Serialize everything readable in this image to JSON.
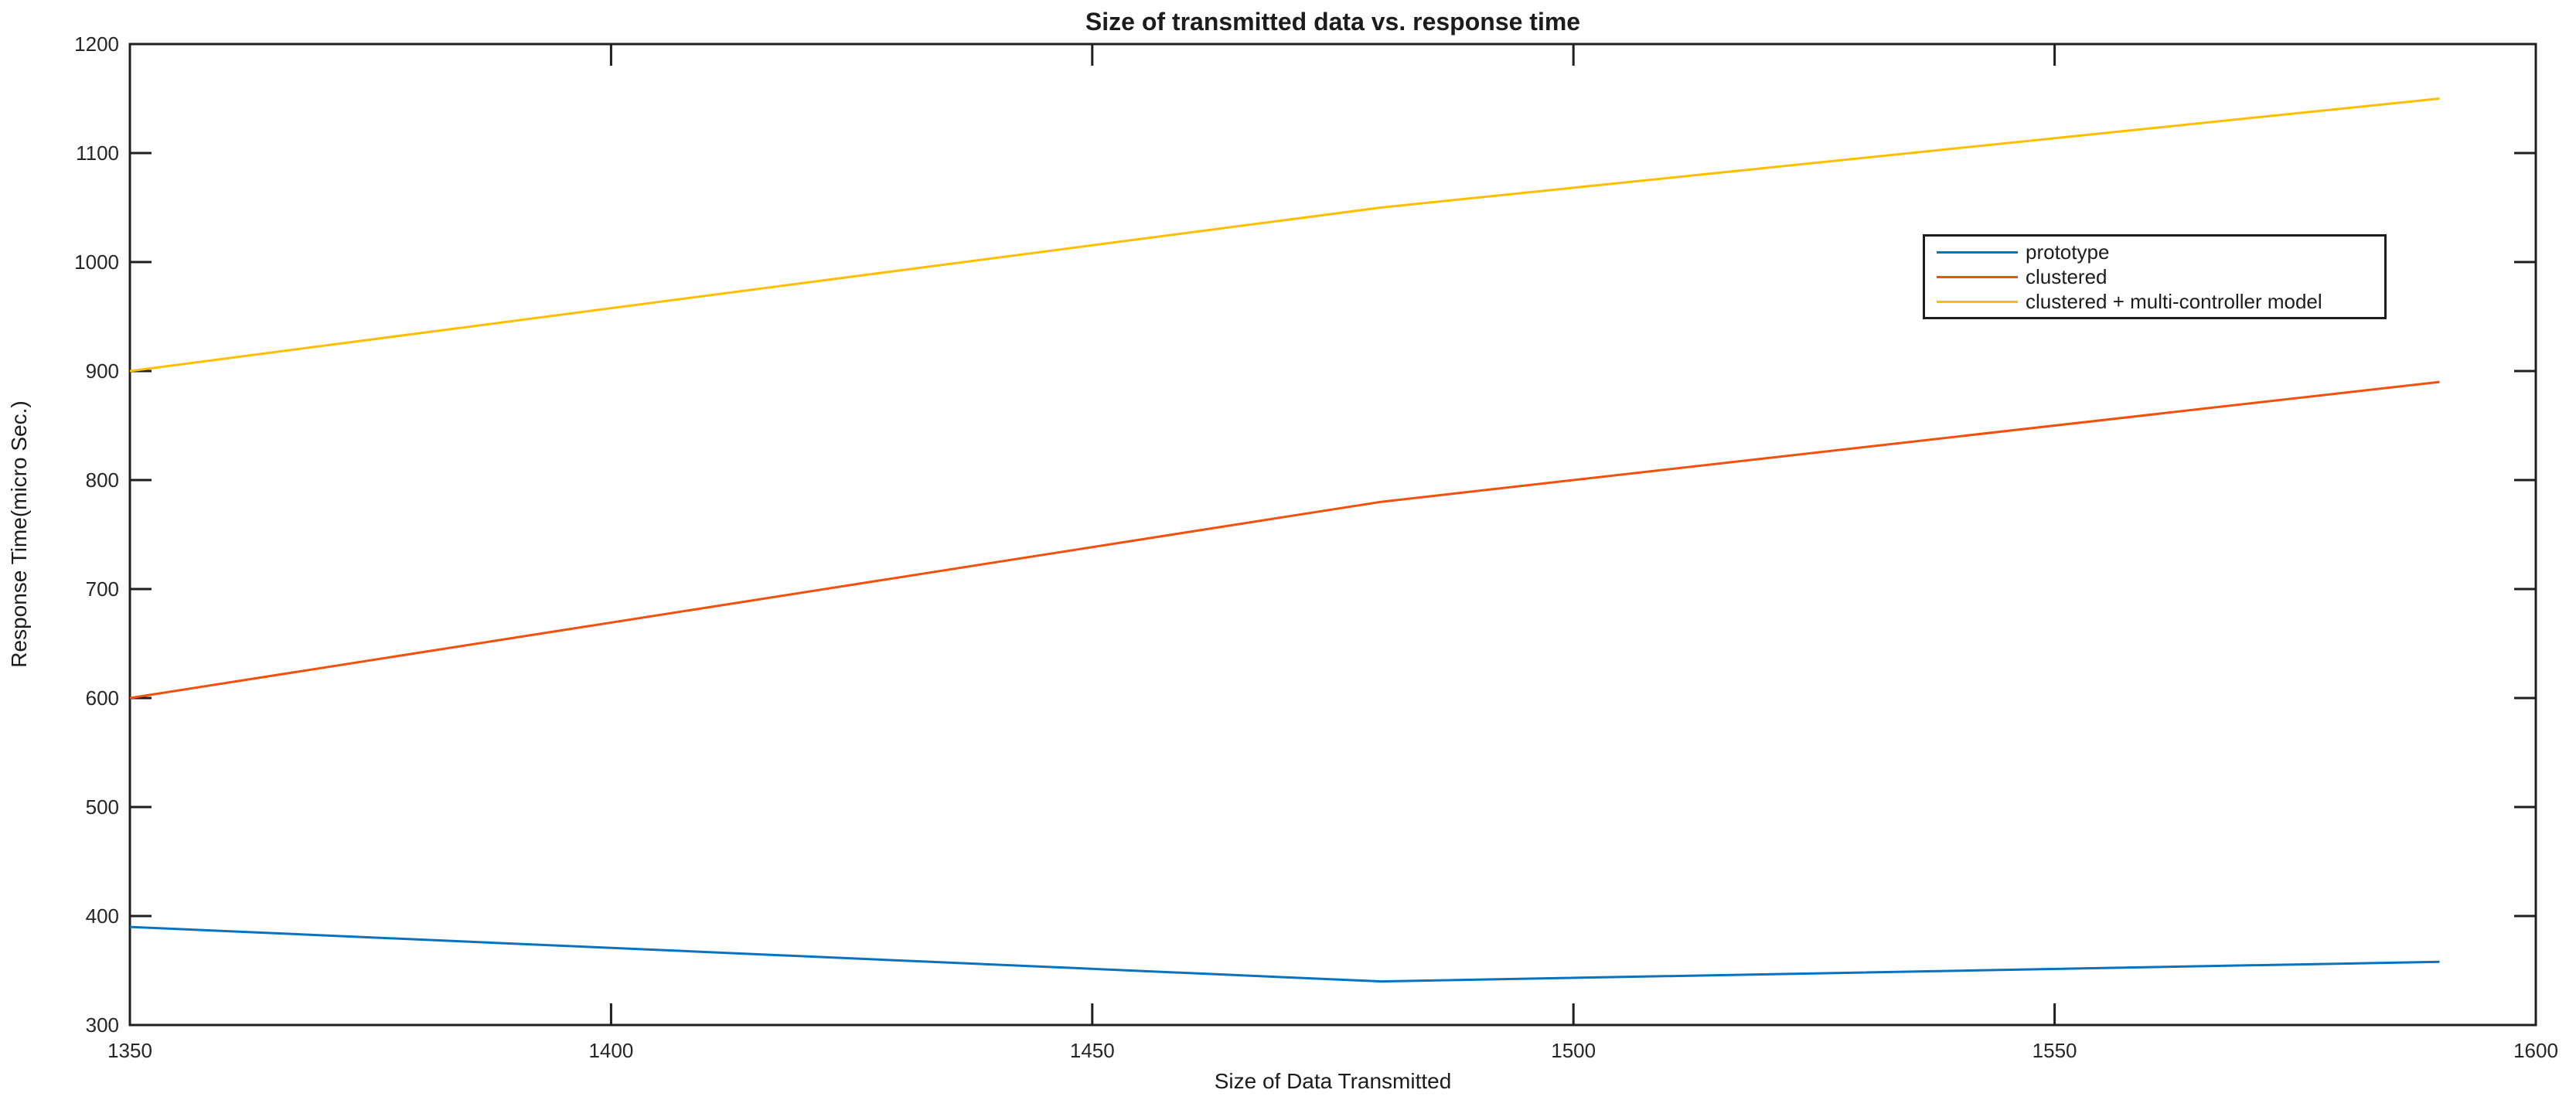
{
  "chart_data": {
    "type": "line",
    "title": "Size of transmitted data vs. response time",
    "xlabel": "Size of Data Transmitted",
    "ylabel": "Response Time(micro Sec.)",
    "xlim": [
      1350,
      1600
    ],
    "ylim": [
      300,
      1200
    ],
    "xticks": [
      1350,
      1400,
      1450,
      1500,
      1550,
      1600
    ],
    "yticks": [
      300,
      400,
      500,
      600,
      700,
      800,
      900,
      1000,
      1100,
      1200
    ],
    "grid": false,
    "box": true,
    "axis_color": "#1f1f1f",
    "background_color": "#ffffff",
    "legend_position": "upper-right-inside",
    "x": [
      1350,
      1480,
      1590
    ],
    "series": [
      {
        "name": "prototype",
        "color": "#0B72BE",
        "values": [
          390,
          340,
          358
        ]
      },
      {
        "name": "clustered",
        "color": "#F2500D",
        "values": [
          600,
          780,
          890
        ]
      },
      {
        "name": "clustered + multi-controller model",
        "color": "#FFBF00",
        "values": [
          900,
          1050,
          1150
        ]
      }
    ]
  }
}
